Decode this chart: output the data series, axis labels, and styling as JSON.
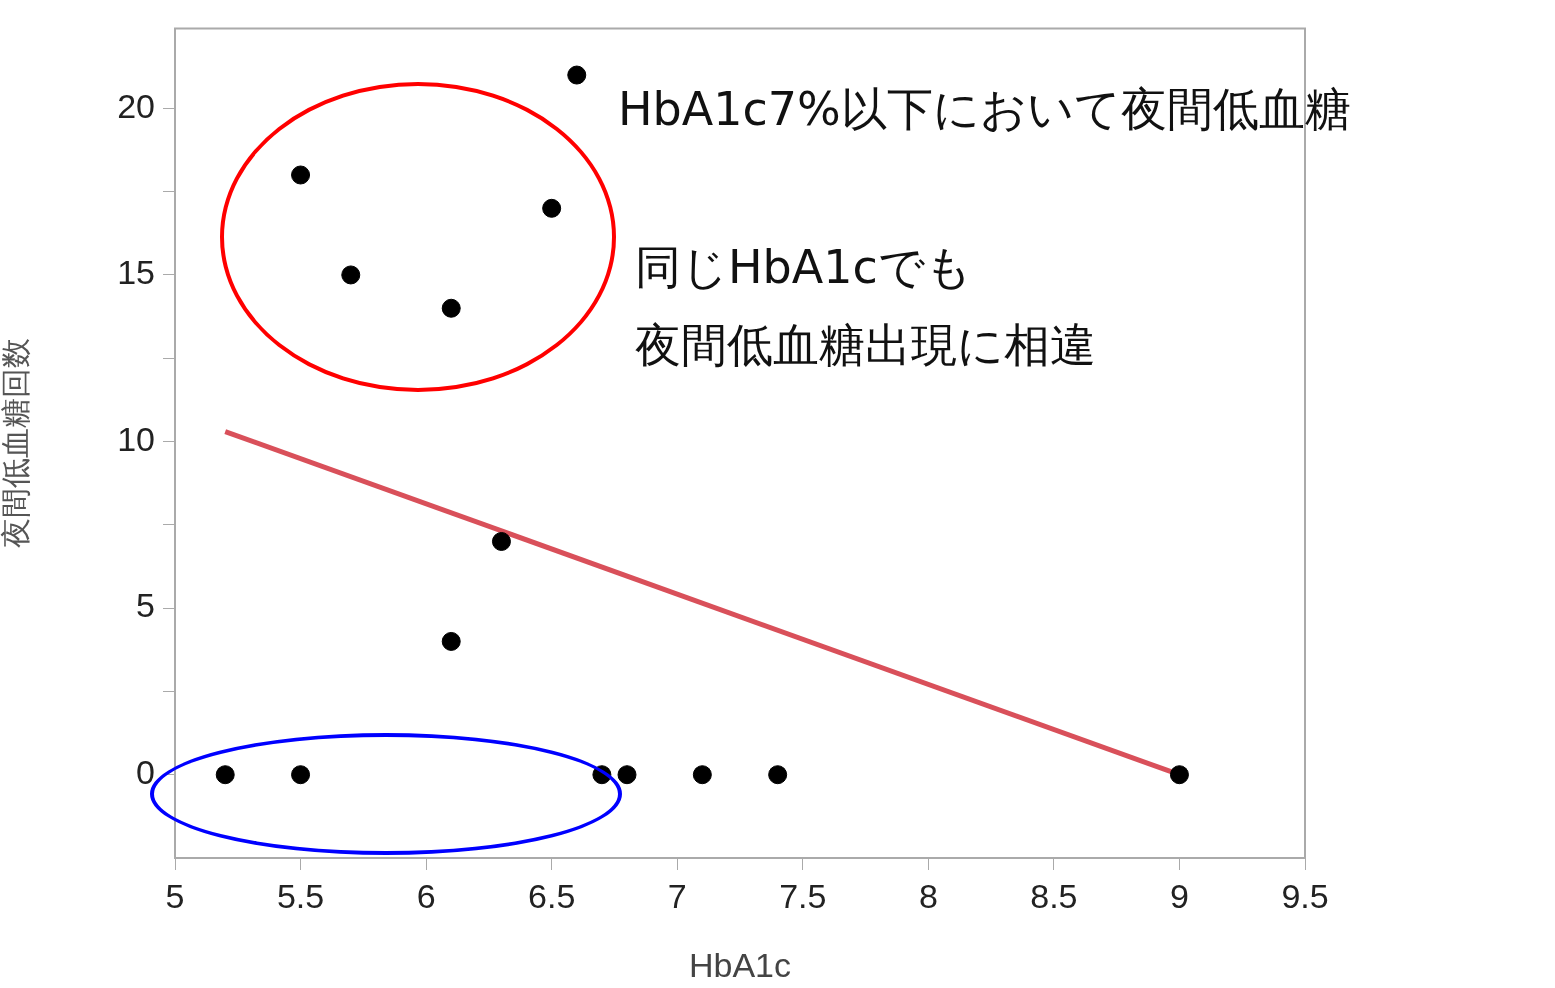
{
  "chart_data": {
    "type": "scatter",
    "xlabel": "HbA1c",
    "ylabel": "夜間低血糖回数",
    "xlim": [
      5,
      9.5
    ],
    "xticks": [
      5,
      5.5,
      6,
      6.5,
      7,
      7.5,
      8,
      8.5,
      9,
      9.5
    ],
    "ylim": [
      -2.5,
      22.4
    ],
    "yticks": [
      0,
      {
        "value": 2.5,
        "label": null
      },
      5,
      {
        "value": 7.5,
        "label": null
      },
      10,
      {
        "value": 12.5,
        "label": null
      },
      15,
      {
        "value": 17.5,
        "label": null
      },
      20
    ],
    "grid": false,
    "legend": false,
    "series": [
      {
        "color": "#000000",
        "marker": "circle",
        "x": [
          5.2,
          5.5,
          5.5,
          5.7,
          6.1,
          6.5,
          6.6,
          6.3,
          6.1,
          6.7,
          6.8,
          7.1,
          7.4,
          9
        ],
        "values": [
          0,
          0,
          18,
          15,
          14,
          17,
          21,
          7,
          4,
          0,
          0,
          0,
          0,
          0
        ]
      },
      {
        "type": "line",
        "marker": "none",
        "color": "#d9505a",
        "x": [
          5.2,
          9
        ],
        "values": [
          10.3,
          0
        ]
      }
    ],
    "annotations": [
      "HbA1c7%以下において夜間低血糖",
      "同じHbA1cでも",
      "夜間低血糖出現に相違"
    ]
  }
}
